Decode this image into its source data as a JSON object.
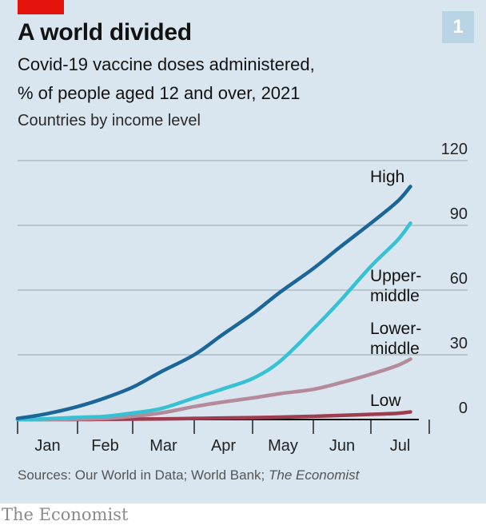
{
  "title": "A world divided",
  "badge": "1",
  "subtitle_line1": "Covid-19 vaccine doses administered,",
  "subtitle_line2": "% of people aged 12 and over, 2021",
  "subtitle_line3": "Countries by income level",
  "source_prefix": "Sources: Our World in Data; World Bank; ",
  "source_italic": "The Economist",
  "footer": "The Economist",
  "colors": {
    "accent": "#e3120b",
    "high": "#1b6698",
    "upper_middle": "#36c1d4",
    "lower_middle": "#b48b9b",
    "low": "#9e3d4f"
  },
  "chart_data": {
    "type": "line",
    "title": "A world divided",
    "xlabel": "",
    "ylabel": "",
    "x_ticks": [
      "Jan",
      "Feb",
      "Mar",
      "Apr",
      "May",
      "Jun",
      "Jul"
    ],
    "y_ticks": [
      0,
      30,
      60,
      90,
      120
    ],
    "ylim": [
      0,
      120
    ],
    "y_axis_side": "right",
    "grid": true,
    "legend": "inline-labels",
    "x": [
      "Jan 1",
      "Jan 15",
      "Feb 1",
      "Feb 15",
      "Mar 1",
      "Mar 15",
      "Apr 1",
      "Apr 15",
      "May 1",
      "May 15",
      "Jun 1",
      "Jun 15",
      "Jul 1",
      "Jul 15",
      "Jul 22"
    ],
    "series": [
      {
        "name": "High",
        "label_lines": [
          "High"
        ],
        "color": "#1b6698",
        "values": [
          0.5,
          2.5,
          6,
          10,
          15,
          22,
          30,
          39,
          49,
          59,
          70,
          80,
          91,
          101,
          108
        ]
      },
      {
        "name": "Upper-middle",
        "label_lines": [
          "Upper-",
          "middle"
        ],
        "color": "#36c1d4",
        "values": [
          0,
          0.3,
          1,
          1.5,
          3,
          5,
          10,
          14,
          19,
          27,
          42,
          55,
          71,
          83,
          91
        ]
      },
      {
        "name": "Lower-middle",
        "label_lines": [
          "Lower-",
          "middle"
        ],
        "color": "#b48b9b",
        "values": [
          0,
          0,
          0.2,
          0.5,
          1.5,
          3,
          6,
          8,
          10,
          12,
          14,
          17,
          21,
          25,
          28
        ]
      },
      {
        "name": "Low",
        "label_lines": [
          "Low"
        ],
        "color": "#9e3d4f",
        "values": [
          0,
          0,
          0,
          0.1,
          0.2,
          0.3,
          0.5,
          0.7,
          0.9,
          1.1,
          1.5,
          1.9,
          2.4,
          2.9,
          3.5
        ]
      }
    ]
  }
}
